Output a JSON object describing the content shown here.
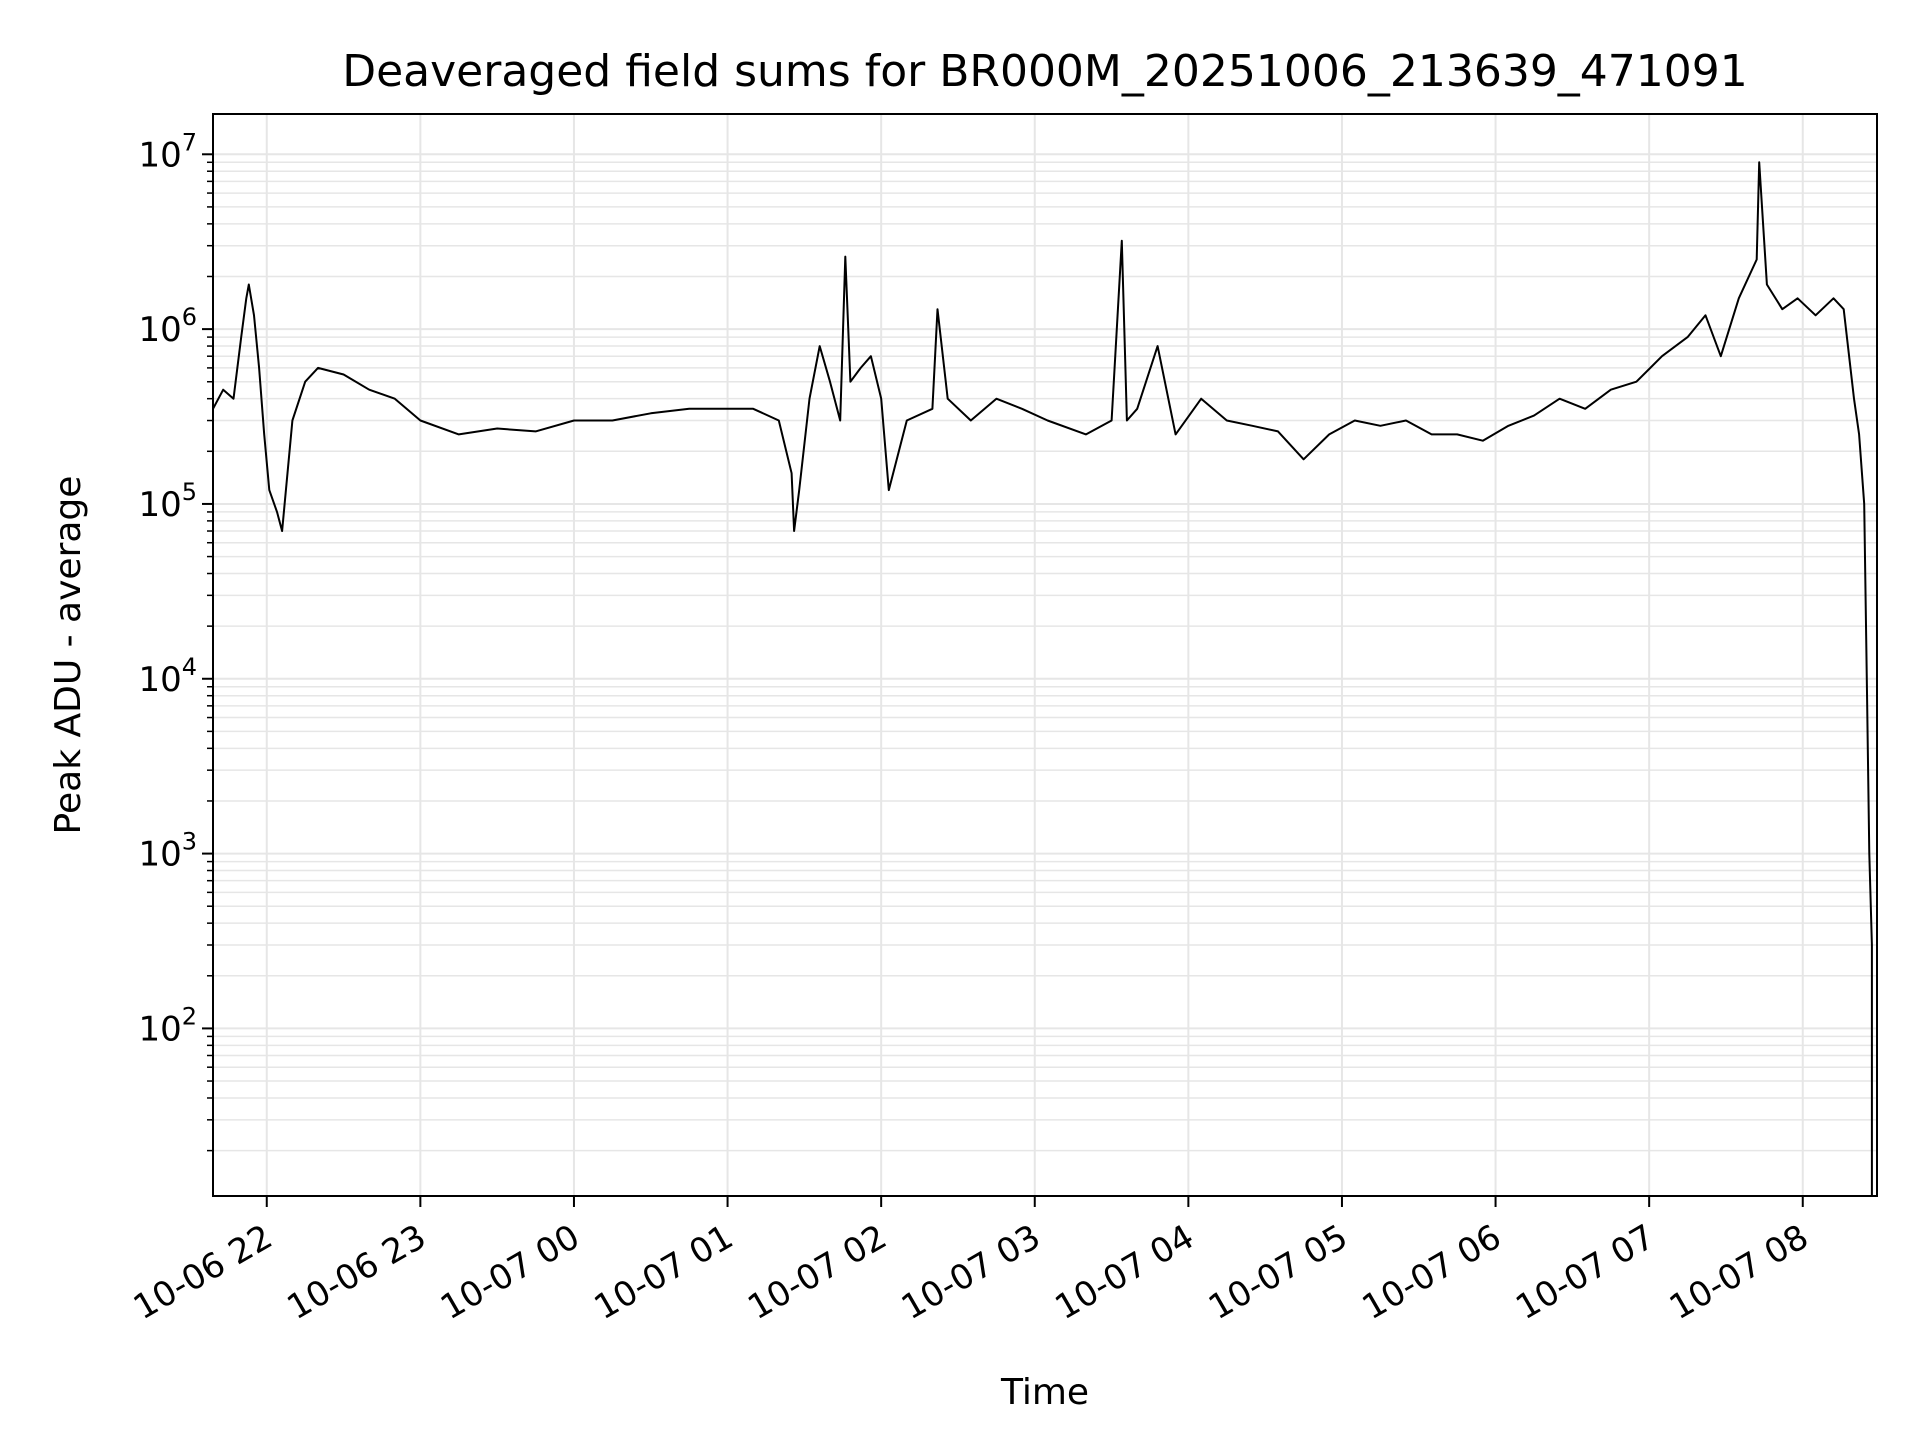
{
  "chart_data": {
    "type": "line",
    "title": "Deaveraged field sums for BR000M_20251006_213639_471091",
    "xlabel": "Time",
    "ylabel": "Peak ADU - average",
    "y_scale": "log",
    "ylim": [
      11,
      17000000
    ],
    "xlim": [
      "2025-10-06 21:39",
      "2025-10-07 08:29"
    ],
    "grid": {
      "major": true,
      "minor_y": true
    },
    "line_color": "#000000",
    "grid_color": "#e6e6e6",
    "x_ticks": [
      {
        "t": "2025-10-06 22:00",
        "label": "10-06 22"
      },
      {
        "t": "2025-10-06 23:00",
        "label": "10-06 23"
      },
      {
        "t": "2025-10-07 00:00",
        "label": "10-07 00"
      },
      {
        "t": "2025-10-07 01:00",
        "label": "10-07 01"
      },
      {
        "t": "2025-10-07 02:00",
        "label": "10-07 02"
      },
      {
        "t": "2025-10-07 03:00",
        "label": "10-07 03"
      },
      {
        "t": "2025-10-07 04:00",
        "label": "10-07 04"
      },
      {
        "t": "2025-10-07 05:00",
        "label": "10-07 05"
      },
      {
        "t": "2025-10-07 06:00",
        "label": "10-07 06"
      },
      {
        "t": "2025-10-07 07:00",
        "label": "10-07 07"
      },
      {
        "t": "2025-10-07 08:00",
        "label": "10-07 08"
      }
    ],
    "y_ticks": [
      {
        "v": 100,
        "base": "10",
        "exp": "2"
      },
      {
        "v": 1000,
        "base": "10",
        "exp": "3"
      },
      {
        "v": 10000,
        "base": "10",
        "exp": "4"
      },
      {
        "v": 100000,
        "base": "10",
        "exp": "5"
      },
      {
        "v": 1000000,
        "base": "10",
        "exp": "6"
      },
      {
        "v": 10000000,
        "base": "10",
        "exp": "7"
      }
    ],
    "series": [
      {
        "points": [
          [
            "2025-10-06 21:39",
            350000
          ],
          [
            "2025-10-06 21:43",
            450000
          ],
          [
            "2025-10-06 21:47",
            400000
          ],
          [
            "2025-10-06 21:50",
            900000
          ],
          [
            "2025-10-06 21:52",
            1500000
          ],
          [
            "2025-10-06 21:53",
            1800000
          ],
          [
            "2025-10-06 21:55",
            1200000
          ],
          [
            "2025-10-06 21:57",
            600000
          ],
          [
            "2025-10-06 21:59",
            250000
          ],
          [
            "2025-10-06 22:01",
            120000
          ],
          [
            "2025-10-06 22:04",
            90000
          ],
          [
            "2025-10-06 22:06",
            70000
          ],
          [
            "2025-10-06 22:10",
            300000
          ],
          [
            "2025-10-06 22:15",
            500000
          ],
          [
            "2025-10-06 22:20",
            600000
          ],
          [
            "2025-10-06 22:30",
            550000
          ],
          [
            "2025-10-06 22:40",
            450000
          ],
          [
            "2025-10-06 22:50",
            400000
          ],
          [
            "2025-10-06 23:00",
            300000
          ],
          [
            "2025-10-06 23:15",
            250000
          ],
          [
            "2025-10-06 23:30",
            270000
          ],
          [
            "2025-10-06 23:45",
            260000
          ],
          [
            "2025-10-07 00:00",
            300000
          ],
          [
            "2025-10-07 00:15",
            300000
          ],
          [
            "2025-10-07 00:30",
            330000
          ],
          [
            "2025-10-07 00:45",
            350000
          ],
          [
            "2025-10-07 01:00",
            350000
          ],
          [
            "2025-10-07 01:10",
            350000
          ],
          [
            "2025-10-07 01:20",
            300000
          ],
          [
            "2025-10-07 01:25",
            150000
          ],
          [
            "2025-10-07 01:26",
            70000
          ],
          [
            "2025-10-07 01:28",
            120000
          ],
          [
            "2025-10-07 01:32",
            400000
          ],
          [
            "2025-10-07 01:36",
            800000
          ],
          [
            "2025-10-07 01:40",
            500000
          ],
          [
            "2025-10-07 01:44",
            300000
          ],
          [
            "2025-10-07 01:46",
            2600000
          ],
          [
            "2025-10-07 01:48",
            500000
          ],
          [
            "2025-10-07 01:52",
            600000
          ],
          [
            "2025-10-07 01:56",
            700000
          ],
          [
            "2025-10-07 02:00",
            400000
          ],
          [
            "2025-10-07 02:03",
            120000
          ],
          [
            "2025-10-07 02:10",
            300000
          ],
          [
            "2025-10-07 02:20",
            350000
          ],
          [
            "2025-10-07 02:22",
            1300000
          ],
          [
            "2025-10-07 02:26",
            400000
          ],
          [
            "2025-10-07 02:35",
            300000
          ],
          [
            "2025-10-07 02:45",
            400000
          ],
          [
            "2025-10-07 02:55",
            350000
          ],
          [
            "2025-10-07 03:05",
            300000
          ],
          [
            "2025-10-07 03:20",
            250000
          ],
          [
            "2025-10-07 03:30",
            300000
          ],
          [
            "2025-10-07 03:34",
            3200000
          ],
          [
            "2025-10-07 03:36",
            300000
          ],
          [
            "2025-10-07 03:40",
            350000
          ],
          [
            "2025-10-07 03:48",
            800000
          ],
          [
            "2025-10-07 03:55",
            250000
          ],
          [
            "2025-10-07 04:05",
            400000
          ],
          [
            "2025-10-07 04:15",
            300000
          ],
          [
            "2025-10-07 04:25",
            280000
          ],
          [
            "2025-10-07 04:35",
            260000
          ],
          [
            "2025-10-07 04:45",
            180000
          ],
          [
            "2025-10-07 04:55",
            250000
          ],
          [
            "2025-10-07 05:05",
            300000
          ],
          [
            "2025-10-07 05:15",
            280000
          ],
          [
            "2025-10-07 05:25",
            300000
          ],
          [
            "2025-10-07 05:35",
            250000
          ],
          [
            "2025-10-07 05:45",
            250000
          ],
          [
            "2025-10-07 05:55",
            230000
          ],
          [
            "2025-10-07 06:05",
            280000
          ],
          [
            "2025-10-07 06:15",
            320000
          ],
          [
            "2025-10-07 06:25",
            400000
          ],
          [
            "2025-10-07 06:35",
            350000
          ],
          [
            "2025-10-07 06:45",
            450000
          ],
          [
            "2025-10-07 06:55",
            500000
          ],
          [
            "2025-10-07 07:05",
            700000
          ],
          [
            "2025-10-07 07:15",
            900000
          ],
          [
            "2025-10-07 07:22",
            1200000
          ],
          [
            "2025-10-07 07:28",
            700000
          ],
          [
            "2025-10-07 07:35",
            1500000
          ],
          [
            "2025-10-07 07:42",
            2500000
          ],
          [
            "2025-10-07 07:43",
            9000000
          ],
          [
            "2025-10-07 07:46",
            1800000
          ],
          [
            "2025-10-07 07:52",
            1300000
          ],
          [
            "2025-10-07 07:58",
            1500000
          ],
          [
            "2025-10-07 08:05",
            1200000
          ],
          [
            "2025-10-07 08:12",
            1500000
          ],
          [
            "2025-10-07 08:16",
            1300000
          ],
          [
            "2025-10-07 08:20",
            400000
          ],
          [
            "2025-10-07 08:22",
            250000
          ],
          [
            "2025-10-07 08:24",
            100000
          ],
          [
            "2025-10-07 08:25",
            10000
          ],
          [
            "2025-10-07 08:26",
            1000
          ],
          [
            "2025-10-07 08:27",
            300
          ],
          [
            "2025-10-07 08:27",
            11
          ]
        ]
      }
    ]
  }
}
